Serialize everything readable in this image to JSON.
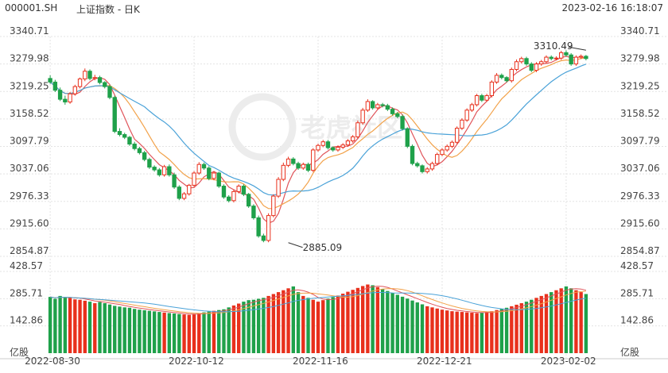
{
  "header": {
    "code": "000001.SH",
    "name": "上证指数 - 日K",
    "datetime": "2023-02-16 16:18:07"
  },
  "watermark": "老虎社区",
  "colors": {
    "up": "#e8301c",
    "down": "#1fa14a",
    "ma_red": "#e0545a",
    "ma_orange": "#f2a24a",
    "ma_blue": "#4aa2d8",
    "grid": "#e3e3e3",
    "axis_text": "#444444"
  },
  "chart_data": [
    {
      "type": "candlestick",
      "title": "",
      "y_ticks": [
        "3340.71",
        "3279.98",
        "3219.25",
        "3158.52",
        "3097.79",
        "3037.06",
        "2976.33",
        "2915.60",
        "2854.87"
      ],
      "ylim": [
        2854.87,
        3340.71
      ],
      "x_tick_labels": [
        {
          "index": 0,
          "label": "2022-08-30"
        },
        {
          "index": 29,
          "label": "2022-10-12"
        },
        {
          "index": 54,
          "label": "2022-11-16"
        },
        {
          "index": 79,
          "label": "2022-12-21"
        },
        {
          "index": 104,
          "label": "2023-02-02"
        }
      ],
      "annotations": [
        {
          "label": "3310.49",
          "index": 108,
          "value": 3310.49
        },
        {
          "label": "2885.09",
          "index": 48,
          "value": 2885.09
        }
      ],
      "moving_averages": [
        "ma_red",
        "ma_orange",
        "ma_blue"
      ],
      "close": [
        3240,
        3222,
        3202,
        3196,
        3214,
        3230,
        3247,
        3264,
        3248,
        3250,
        3239,
        3230,
        3206,
        3131,
        3124,
        3118,
        3103,
        3093,
        3084,
        3069,
        3052,
        3046,
        3035,
        3053,
        3035,
        3008,
        2983,
        2993,
        3012,
        3039,
        3058,
        3050,
        3027,
        3039,
        3010,
        2986,
        2978,
        2998,
        3010,
        2992,
        2966,
        2940,
        2900,
        2890,
        2945,
        2988,
        3025,
        3056,
        3070,
        3060,
        3050,
        3058,
        3045,
        3090,
        3100,
        3108,
        3095,
        3090,
        3096,
        3101,
        3110,
        3119,
        3150,
        3178,
        3197,
        3183,
        3190,
        3188,
        3180,
        3170,
        3164,
        3137,
        3098,
        3060,
        3055,
        3042,
        3048,
        3060,
        3080,
        3090,
        3098,
        3107,
        3138,
        3156,
        3178,
        3190,
        3210,
        3200,
        3210,
        3240,
        3255,
        3250,
        3243,
        3268,
        3285,
        3292,
        3280,
        3266,
        3280,
        3285,
        3295,
        3292,
        3293,
        3305,
        3300,
        3280,
        3295,
        3297,
        3292
      ],
      "open": [
        3248,
        3240,
        3222,
        3202,
        3196,
        3214,
        3230,
        3247,
        3264,
        3248,
        3250,
        3239,
        3230,
        3206,
        3131,
        3124,
        3118,
        3103,
        3093,
        3084,
        3069,
        3052,
        3046,
        3035,
        3053,
        3035,
        3008,
        2983,
        2993,
        3012,
        3039,
        3058,
        3050,
        3027,
        3039,
        3010,
        2986,
        2978,
        2998,
        3010,
        2992,
        2966,
        2940,
        2900,
        2890,
        2945,
        2988,
        3025,
        3056,
        3070,
        3060,
        3050,
        3058,
        3045,
        3090,
        3100,
        3108,
        3095,
        3090,
        3096,
        3101,
        3110,
        3119,
        3150,
        3178,
        3197,
        3183,
        3190,
        3188,
        3180,
        3170,
        3164,
        3137,
        3098,
        3060,
        3055,
        3042,
        3048,
        3060,
        3080,
        3090,
        3098,
        3107,
        3138,
        3156,
        3178,
        3190,
        3210,
        3200,
        3210,
        3240,
        3255,
        3250,
        3243,
        3268,
        3285,
        3292,
        3280,
        3266,
        3280,
        3285,
        3295,
        3292,
        3293,
        3305,
        3300,
        3280,
        3295,
        3297
      ],
      "high": [
        3255,
        3245,
        3228,
        3210,
        3218,
        3234,
        3250,
        3270,
        3268,
        3256,
        3254,
        3242,
        3234,
        3210,
        3138,
        3128,
        3121,
        3108,
        3097,
        3088,
        3073,
        3056,
        3050,
        3057,
        3058,
        3040,
        3012,
        2997,
        3015,
        3043,
        3063,
        3062,
        3054,
        3043,
        3042,
        3014,
        2990,
        3002,
        3014,
        3014,
        2995,
        2970,
        2945,
        2905,
        2950,
        2992,
        3030,
        3062,
        3075,
        3074,
        3064,
        3062,
        3062,
        3094,
        3104,
        3112,
        3112,
        3098,
        3100,
        3105,
        3114,
        3123,
        3155,
        3183,
        3202,
        3200,
        3194,
        3194,
        3192,
        3184,
        3174,
        3168,
        3140,
        3102,
        3064,
        3058,
        3052,
        3064,
        3084,
        3094,
        3102,
        3111,
        3142,
        3160,
        3182,
        3194,
        3214,
        3214,
        3214,
        3244,
        3260,
        3259,
        3253,
        3272,
        3290,
        3296,
        3296,
        3284,
        3284,
        3289,
        3299,
        3299,
        3297,
        3309,
        3310,
        3304,
        3299,
        3301,
        3300
      ],
      "low": [
        3236,
        3218,
        3198,
        3190,
        3192,
        3210,
        3226,
        3242,
        3244,
        3244,
        3235,
        3226,
        3202,
        3127,
        3120,
        3114,
        3099,
        3089,
        3080,
        3065,
        3048,
        3042,
        3031,
        3031,
        3031,
        3004,
        2979,
        2979,
        2989,
        3008,
        3035,
        3046,
        3023,
        3023,
        3006,
        2982,
        2974,
        2974,
        2994,
        2988,
        2962,
        2936,
        2896,
        2886,
        2886,
        2941,
        2984,
        3021,
        3052,
        3056,
        3046,
        3046,
        3041,
        3041,
        3086,
        3096,
        3091,
        3086,
        3086,
        3092,
        3097,
        3106,
        3115,
        3146,
        3174,
        3179,
        3179,
        3184,
        3176,
        3166,
        3160,
        3133,
        3094,
        3056,
        3051,
        3038,
        3038,
        3044,
        3056,
        3076,
        3086,
        3094,
        3103,
        3134,
        3152,
        3174,
        3186,
        3196,
        3196,
        3206,
        3236,
        3246,
        3239,
        3239,
        3264,
        3281,
        3276,
        3262,
        3262,
        3276,
        3281,
        3288,
        3288,
        3289,
        3296,
        3276,
        3276,
        3291,
        3288
      ],
      "volume_panel": {
        "y_ticks": [
          "428.57",
          "285.71",
          "142.86"
        ],
        "ylim": [
          0,
          428.57
        ],
        "unit_label": "亿股",
        "volumes": [
          295,
          285,
          300,
          292,
          290,
          282,
          280,
          275,
          270,
          262,
          268,
          262,
          255,
          248,
          244,
          240,
          238,
          232,
          228,
          225,
          222,
          219,
          216,
          213,
          210,
          208,
          205,
          203,
          201,
          205,
          210,
          214,
          218,
          222,
          226,
          230,
          240,
          250,
          260,
          270,
          278,
          280,
          285,
          290,
          300,
          310,
          320,
          330,
          340,
          350,
          320,
          300,
          290,
          280,
          270,
          278,
          286,
          294,
          302,
          312,
          322,
          332,
          342,
          352,
          360,
          356,
          346,
          336,
          326,
          316,
          306,
          296,
          286,
          276,
          266,
          256,
          246,
          240,
          234,
          228,
          224,
          220,
          218,
          216,
          214,
          212,
          210,
          212,
          216,
          220,
          226,
          232,
          238,
          246,
          254,
          262,
          270,
          280,
          290,
          300,
          310,
          320,
          330,
          340,
          350,
          340,
          330,
          320,
          310
        ]
      }
    }
  ]
}
